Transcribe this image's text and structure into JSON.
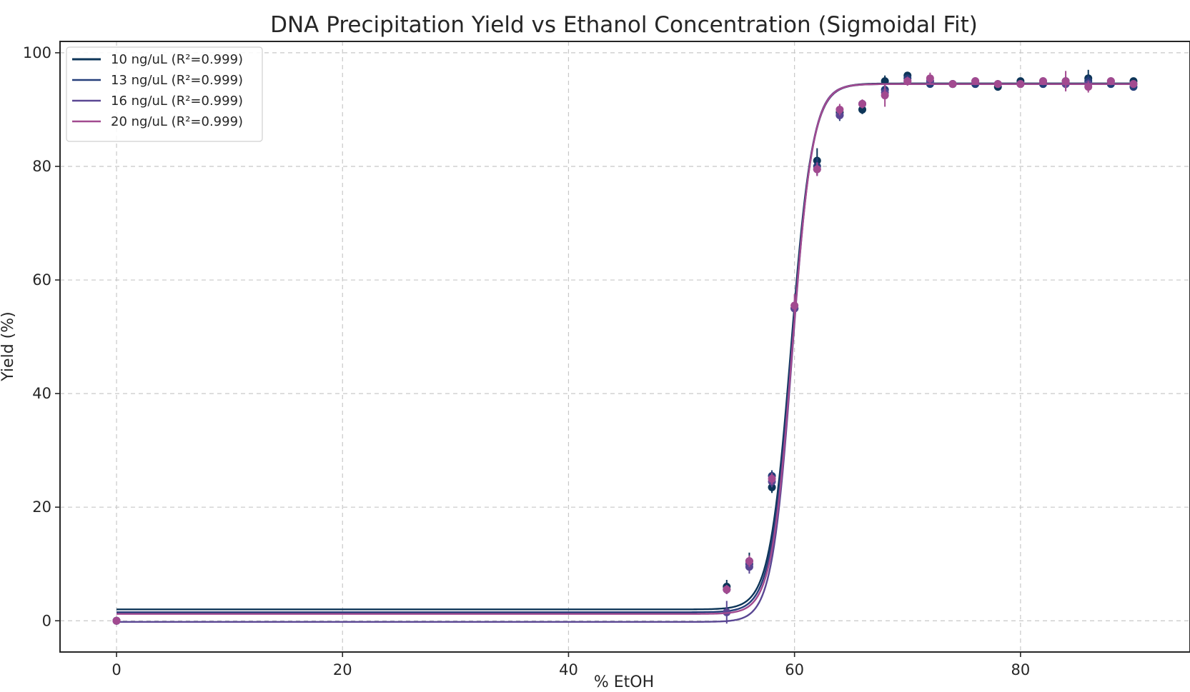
{
  "chart_data": {
    "type": "scatter",
    "title": "DNA Precipitation Yield vs Ethanol Concentration (Sigmoidal Fit)",
    "xlabel": "% EtOH",
    "ylabel": "Yield (%)",
    "xlim": [
      -5,
      95
    ],
    "ylim": [
      -5.5,
      102
    ],
    "xticks": [
      0,
      20,
      40,
      60,
      80
    ],
    "yticks": [
      0,
      20,
      40,
      60,
      80,
      100
    ],
    "grid": true,
    "legend_position": "top-left",
    "series": [
      {
        "name": "10 ng/uL (R²=0.999)",
        "color": "#0d3558",
        "fit": {
          "bottom": 2.0,
          "top": 94.6,
          "midpoint": 59.7,
          "slope": 1.05
        },
        "x": [
          0,
          54,
          56,
          58,
          60,
          62,
          64,
          66,
          68,
          70,
          72,
          74,
          76,
          78,
          80,
          82,
          84,
          86,
          88,
          90
        ],
        "y": [
          0.0,
          6.0,
          10.5,
          23.5,
          55.0,
          81.0,
          89.5,
          90.0,
          95.0,
          96.0,
          95.0,
          94.5,
          94.5,
          94.0,
          95.0,
          94.5,
          95.0,
          95.5,
          94.5,
          95.0
        ],
        "err": [
          0,
          1.2,
          1.5,
          1.0,
          1.5,
          2.2,
          1.2,
          0.8,
          1.0,
          0.6,
          0.6,
          0.5,
          0.5,
          0.5,
          0.5,
          0.6,
          0.8,
          1.5,
          0.6,
          0.5
        ]
      },
      {
        "name": "13 ng/uL (R²=0.999)",
        "color": "#253e7a",
        "fit": {
          "bottom": 1.5,
          "top": 94.5,
          "midpoint": 59.75,
          "slope": 1.07
        },
        "x": [
          0,
          54,
          56,
          58,
          60,
          62,
          64,
          66,
          68,
          70,
          72,
          74,
          76,
          78,
          80,
          82,
          84,
          86,
          88,
          90
        ],
        "y": [
          0.0,
          5.5,
          10.0,
          25.5,
          55.0,
          80.0,
          89.0,
          91.0,
          93.5,
          95.5,
          94.5,
          94.5,
          94.5,
          94.5,
          94.5,
          94.5,
          94.5,
          95.0,
          94.5,
          94.0
        ],
        "err": [
          0,
          0.8,
          1.2,
          1.0,
          1.2,
          1.5,
          1.0,
          0.7,
          1.0,
          0.6,
          0.6,
          0.5,
          0.5,
          0.5,
          0.5,
          0.5,
          0.8,
          1.0,
          0.5,
          0.5
        ]
      },
      {
        "name": "16 ng/uL (R²=0.999)",
        "color": "#5a4793",
        "fit": {
          "bottom": -0.2,
          "top": 94.5,
          "midpoint": 59.8,
          "slope": 1.12
        },
        "x": [
          0,
          54,
          56,
          58,
          60,
          62,
          64,
          66,
          68,
          70,
          72,
          74,
          76,
          78,
          80,
          82,
          84,
          86,
          88,
          90
        ],
        "y": [
          0.0,
          1.5,
          9.5,
          24.5,
          55.0,
          79.5,
          89.0,
          91.0,
          93.0,
          95.0,
          95.0,
          94.5,
          95.0,
          94.5,
          94.5,
          95.0,
          94.5,
          94.5,
          95.0,
          94.5
        ],
        "err": [
          0,
          2.0,
          1.2,
          1.0,
          1.2,
          1.2,
          0.8,
          0.6,
          1.0,
          0.6,
          0.6,
          0.5,
          0.5,
          0.5,
          0.5,
          0.5,
          1.0,
          0.8,
          0.5,
          0.5
        ]
      },
      {
        "name": "20 ng/uL (R²=0.999)",
        "color": "#a24a90",
        "fit": {
          "bottom": 1.2,
          "top": 94.5,
          "midpoint": 59.8,
          "slope": 1.1
        },
        "x": [
          0,
          54,
          56,
          58,
          60,
          62,
          64,
          66,
          68,
          70,
          72,
          74,
          76,
          78,
          80,
          82,
          84,
          86,
          88,
          90
        ],
        "y": [
          0.0,
          5.5,
          10.5,
          25.0,
          55.5,
          79.5,
          90.0,
          91.0,
          92.5,
          95.0,
          95.5,
          94.5,
          95.0,
          94.5,
          94.5,
          95.0,
          95.0,
          94.0,
          95.0,
          94.5
        ],
        "err": [
          0,
          0.8,
          1.0,
          1.0,
          2.0,
          1.2,
          1.0,
          0.8,
          2.0,
          0.8,
          1.0,
          0.5,
          0.5,
          0.5,
          0.5,
          0.5,
          1.8,
          1.0,
          0.5,
          0.5
        ]
      }
    ]
  }
}
